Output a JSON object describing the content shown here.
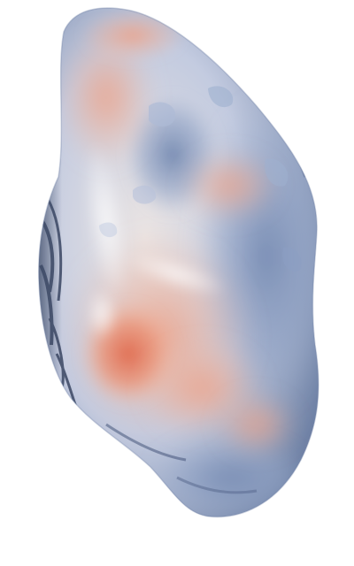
{
  "scene": {
    "subject": "3d-surface-render",
    "background_color": "#ffffff",
    "colors": {
      "blue_dark": "#4a5a78",
      "blue": "#7f93b8",
      "blue_light": "#aab8d3",
      "neutral": "#e9e3e1",
      "salmon_light": "#f1b9a2",
      "salmon": "#ea9276",
      "salmon_deep": "#e0694d"
    }
  }
}
